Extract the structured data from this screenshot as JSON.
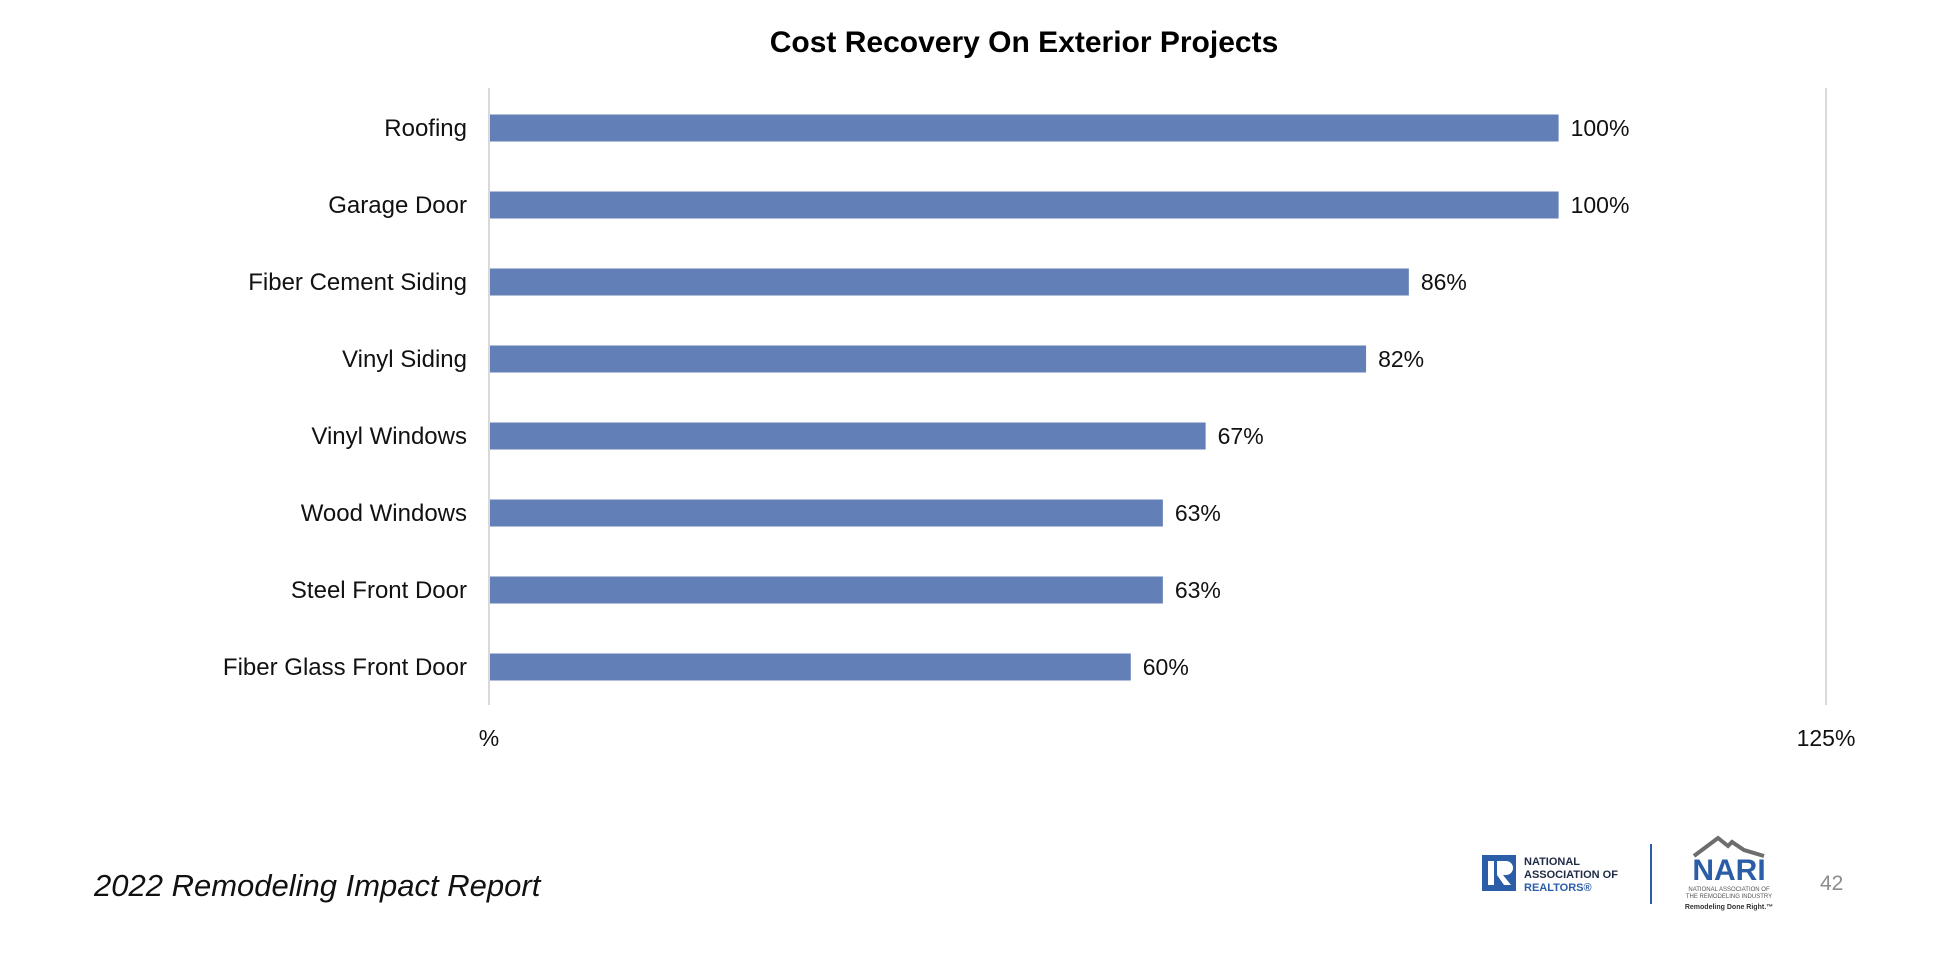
{
  "chart_data": {
    "type": "bar",
    "orientation": "horizontal",
    "title": "Cost Recovery On Exterior Projects",
    "categories": [
      "Roofing",
      "Garage Door",
      "Fiber Cement Siding",
      "Vinyl Siding",
      "Vinyl Windows",
      "Wood Windows",
      "Steel Front Door",
      "Fiber Glass Front Door"
    ],
    "values": [
      100,
      100,
      86,
      82,
      67,
      63,
      63,
      60
    ],
    "value_labels": [
      "100%",
      "100%",
      "86%",
      "82%",
      "67%",
      "63%",
      "63%",
      "60%"
    ],
    "xlim": [
      0,
      125
    ],
    "x_tick_labels": [
      "%",
      "125%"
    ],
    "xlabel": "",
    "ylabel": "",
    "grid": false,
    "legend": "none",
    "bar_color": "#637fb7"
  },
  "footer": {
    "report_title": "2022 Remodeling Impact Report",
    "page_number": "42"
  },
  "logos": {
    "nar": {
      "line1": "NATIONAL",
      "line2": "ASSOCIATION OF",
      "line3": "REALTORS®",
      "icon": "realtor-r-icon"
    },
    "nari": {
      "wordmark": "NARI",
      "sub1": "NATIONAL ASSOCIATION OF",
      "sub2": "THE REMODELING INDUSTRY",
      "tagline": "Remodeling Done Right.™",
      "icon": "house-roof-icon"
    }
  },
  "colors": {
    "accent": "#637fb7",
    "nar_blue": "#2b5ea7",
    "text": "#111111",
    "muted": "#8c8c8c"
  }
}
